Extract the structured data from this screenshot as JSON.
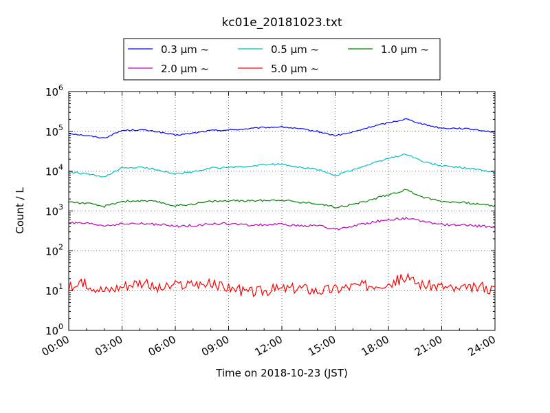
{
  "chart_data": {
    "type": "line",
    "title": "kc01e_20181023.txt",
    "xlabel": "Time on 2018-10-23 (JST)",
    "ylabel": "Count / L",
    "yscale": "log",
    "ylim": [
      1,
      1000000
    ],
    "xlim": [
      "00:00",
      "24:00"
    ],
    "grid": true,
    "legend_placement": "top-center",
    "x_ticks": [
      "00:00",
      "03:00",
      "06:00",
      "09:00",
      "12:00",
      "15:00",
      "18:00",
      "21:00",
      "24:00"
    ],
    "y_ticks": [
      {
        "base": "10",
        "exp": "0"
      },
      {
        "base": "10",
        "exp": "1"
      },
      {
        "base": "10",
        "exp": "2"
      },
      {
        "base": "10",
        "exp": "3"
      },
      {
        "base": "10",
        "exp": "4"
      },
      {
        "base": "10",
        "exp": "5"
      },
      {
        "base": "10",
        "exp": "6"
      }
    ],
    "x_hours": [
      0,
      1,
      2,
      3,
      4,
      5,
      6,
      7,
      8,
      9,
      10,
      11,
      12,
      13,
      14,
      15,
      16,
      17,
      18,
      19,
      20,
      21,
      22,
      23,
      24
    ],
    "series": [
      {
        "name": "0.3 μm ~",
        "color": "#0000ff",
        "values": [
          90000,
          78000,
          68000,
          105000,
          110000,
          98000,
          80000,
          90000,
          105000,
          108000,
          115000,
          125000,
          130000,
          115000,
          100000,
          78000,
          95000,
          130000,
          165000,
          205000,
          150000,
          120000,
          120000,
          110000,
          95000
        ]
      },
      {
        "name": "0.5 μm ~",
        "color": "#00bfbf",
        "values": [
          9500,
          8500,
          7000,
          12000,
          12500,
          11000,
          8500,
          9500,
          12000,
          12500,
          13000,
          14500,
          15000,
          12500,
          11000,
          7800,
          11000,
          15000,
          21000,
          27000,
          17000,
          13500,
          12500,
          11000,
          9000
        ]
      },
      {
        "name": "1.0 μm ~",
        "color": "#008000",
        "values": [
          1700,
          1550,
          1300,
          1750,
          1800,
          1700,
          1350,
          1500,
          1750,
          1800,
          1800,
          1850,
          1900,
          1650,
          1550,
          1250,
          1450,
          1900,
          2600,
          3400,
          2200,
          1750,
          1650,
          1500,
          1350
        ]
      },
      {
        "name": "2.0 μm ~",
        "color": "#bf00bf",
        "values": [
          500,
          480,
          430,
          470,
          480,
          460,
          410,
          430,
          470,
          480,
          440,
          450,
          460,
          420,
          440,
          340,
          420,
          520,
          600,
          650,
          540,
          460,
          440,
          420,
          400
        ]
      },
      {
        "name": "5.0 μm ~",
        "color": "#ff0000",
        "values": [
          12,
          15,
          10,
          13,
          17,
          11,
          13,
          15,
          14,
          12,
          9,
          10,
          11,
          12,
          10,
          11,
          13,
          14,
          16,
          20,
          14,
          13,
          10,
          12,
          11
        ]
      }
    ]
  }
}
